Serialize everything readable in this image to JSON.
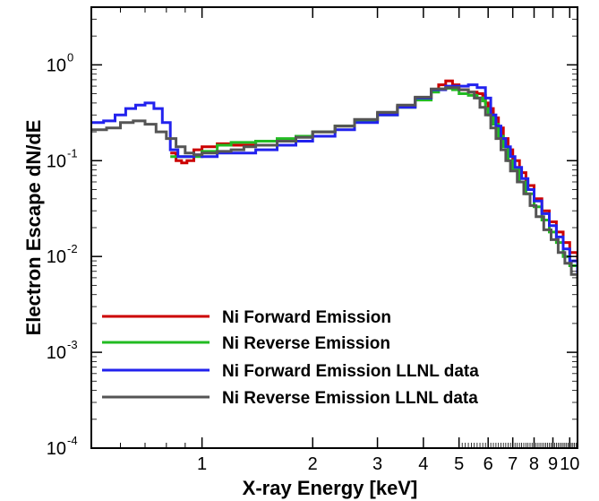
{
  "chart_data": {
    "type": "line",
    "title": "",
    "xlabel": "X-ray Energy [keV]",
    "ylabel": "Electron Escape dN/dE",
    "x_scale": "log",
    "y_scale": "log",
    "xlim": [
      0.5,
      10.5
    ],
    "ylim": [
      0.0001,
      4
    ],
    "grid": false,
    "legend_position": "bottom-left",
    "x_ticks": [
      {
        "value": 1,
        "label": "1"
      },
      {
        "value": 2,
        "label": "2"
      },
      {
        "value": 3,
        "label": "3"
      },
      {
        "value": 4,
        "label": "4"
      },
      {
        "value": 5,
        "label": "5"
      },
      {
        "value": 6,
        "label": "6"
      },
      {
        "value": 7,
        "label": "7"
      },
      {
        "value": 8,
        "label": "8"
      },
      {
        "value": 9,
        "label": "9"
      },
      {
        "value": 10,
        "label": "10"
      }
    ],
    "y_ticks": [
      {
        "value": 0.0001,
        "base": "10",
        "exp": "-4"
      },
      {
        "value": 0.001,
        "base": "10",
        "exp": "-3"
      },
      {
        "value": 0.01,
        "base": "10",
        "exp": "-2"
      },
      {
        "value": 0.1,
        "base": "10",
        "exp": "-1"
      },
      {
        "value": 1,
        "base": "10",
        "exp": "0"
      }
    ],
    "series": [
      {
        "name": "Ni Forward Emission",
        "color": "#cc0000",
        "x": [
          0.82,
          0.85,
          0.88,
          0.91,
          0.95,
          1.0,
          1.1,
          1.2,
          1.4,
          1.6,
          1.8,
          2.0,
          2.3,
          2.6,
          3.0,
          3.4,
          3.8,
          4.2,
          4.4,
          4.6,
          4.8,
          5.0,
          5.3,
          5.6,
          5.8,
          5.9,
          6.0,
          6.2,
          6.4,
          6.6,
          6.8,
          7.0,
          7.3,
          7.6,
          8.0,
          8.4,
          8.8,
          9.2,
          9.6,
          10.0,
          10.5
        ],
        "y": [
          0.12,
          0.1,
          0.095,
          0.1,
          0.13,
          0.14,
          0.15,
          0.145,
          0.16,
          0.165,
          0.18,
          0.2,
          0.23,
          0.26,
          0.31,
          0.37,
          0.45,
          0.55,
          0.62,
          0.68,
          0.62,
          0.55,
          0.52,
          0.5,
          0.48,
          0.4,
          0.35,
          0.28,
          0.22,
          0.17,
          0.13,
          0.1,
          0.075,
          0.055,
          0.04,
          0.03,
          0.023,
          0.018,
          0.014,
          0.011,
          0.0055
        ]
      },
      {
        "name": "Ni Reverse Emission",
        "color": "#22bb22",
        "x": [
          0.82,
          0.9,
          1.0,
          1.1,
          1.2,
          1.4,
          1.6,
          1.8,
          2.0,
          2.3,
          2.6,
          3.0,
          3.4,
          3.8,
          4.2,
          4.4,
          4.6,
          4.8,
          5.0,
          5.3,
          5.6,
          5.8,
          5.9,
          6.0,
          6.2,
          6.4,
          6.6,
          6.8,
          7.0,
          7.3,
          7.6,
          8.0,
          8.4,
          8.8,
          9.2,
          9.6,
          10.0,
          10.5
        ],
        "y": [
          0.11,
          0.11,
          0.125,
          0.145,
          0.155,
          0.16,
          0.17,
          0.18,
          0.2,
          0.23,
          0.26,
          0.3,
          0.36,
          0.43,
          0.52,
          0.56,
          0.57,
          0.55,
          0.5,
          0.48,
          0.45,
          0.42,
          0.35,
          0.3,
          0.24,
          0.18,
          0.14,
          0.1,
          0.08,
          0.06,
          0.045,
          0.033,
          0.024,
          0.018,
          0.014,
          0.01,
          0.008,
          0.005
        ]
      },
      {
        "name": "Ni Forward Emission LLNL data",
        "color": "#2222ee",
        "x": [
          0.5,
          0.54,
          0.58,
          0.62,
          0.66,
          0.7,
          0.74,
          0.78,
          0.82,
          0.86,
          0.9,
          0.95,
          1.0,
          1.1,
          1.2,
          1.3,
          1.4,
          1.6,
          1.8,
          2.0,
          2.3,
          2.6,
          3.0,
          3.4,
          3.8,
          4.2,
          4.6,
          5.0,
          5.3,
          5.6,
          5.9,
          6.1,
          6.3,
          6.5,
          6.7,
          6.9,
          7.1,
          7.4,
          7.7,
          8.0,
          8.4,
          8.8,
          9.2,
          9.6,
          10.0,
          10.5
        ],
        "y": [
          0.25,
          0.26,
          0.3,
          0.35,
          0.38,
          0.4,
          0.35,
          0.25,
          0.13,
          0.11,
          0.11,
          0.115,
          0.11,
          0.12,
          0.12,
          0.12,
          0.13,
          0.145,
          0.16,
          0.18,
          0.21,
          0.25,
          0.3,
          0.36,
          0.45,
          0.55,
          0.6,
          0.6,
          0.62,
          0.58,
          0.45,
          0.3,
          0.23,
          0.17,
          0.14,
          0.11,
          0.085,
          0.065,
          0.05,
          0.038,
          0.028,
          0.021,
          0.016,
          0.012,
          0.009,
          0.006
        ]
      },
      {
        "name": "Ni Reverse Emission LLNL data",
        "color": "#555555",
        "x": [
          0.5,
          0.55,
          0.6,
          0.65,
          0.7,
          0.75,
          0.8,
          0.85,
          0.9,
          0.95,
          1.0,
          1.1,
          1.2,
          1.3,
          1.4,
          1.6,
          1.8,
          2.0,
          2.3,
          2.6,
          3.0,
          3.4,
          3.8,
          4.2,
          4.6,
          5.0,
          5.3,
          5.5,
          5.7,
          5.9,
          6.1,
          6.3,
          6.5,
          6.7,
          6.9,
          7.2,
          7.5,
          7.8,
          8.1,
          8.5,
          8.9,
          9.3,
          9.7,
          10.1,
          10.5
        ],
        "y": [
          0.21,
          0.22,
          0.25,
          0.26,
          0.24,
          0.2,
          0.17,
          0.14,
          0.12,
          0.115,
          0.12,
          0.125,
          0.13,
          0.14,
          0.145,
          0.16,
          0.175,
          0.2,
          0.23,
          0.27,
          0.32,
          0.38,
          0.46,
          0.56,
          0.58,
          0.55,
          0.52,
          0.45,
          0.36,
          0.3,
          0.22,
          0.17,
          0.13,
          0.1,
          0.078,
          0.06,
          0.045,
          0.034,
          0.026,
          0.019,
          0.015,
          0.011,
          0.0085,
          0.0065,
          0.005
        ]
      }
    ]
  }
}
